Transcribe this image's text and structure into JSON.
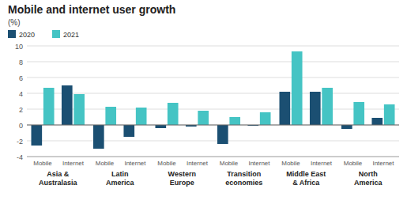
{
  "chart_data": {
    "type": "bar",
    "title": "Mobile and internet user growth",
    "subtitle": "(%)",
    "categories": [
      "Mobile",
      "Internet",
      "Mobile",
      "Internet",
      "Mobile",
      "Internet",
      "Mobile",
      "Internet",
      "Mobile",
      "Internet",
      "Mobile",
      "Internet"
    ],
    "groups": [
      "Asia &\nAustralasia",
      "Latin\nAmerica",
      "Western\nEurope",
      "Transition\neconomies",
      "Middle East\n& Africa",
      "North\nAmerica"
    ],
    "series": [
      {
        "name": "2020",
        "color": "#1b4f72",
        "values": [
          -2.6,
          5.0,
          -3.0,
          -1.5,
          -0.4,
          -0.2,
          -2.4,
          -0.1,
          4.2,
          4.2,
          -0.5,
          0.9
        ]
      },
      {
        "name": "2021",
        "color": "#45c4c4",
        "values": [
          4.7,
          3.9,
          2.3,
          2.2,
          2.8,
          1.8,
          1.0,
          1.6,
          9.3,
          4.7,
          2.9,
          2.6
        ]
      }
    ],
    "ylim": [
      -4,
      10
    ],
    "yticks": [
      -4,
      -2,
      0,
      2,
      4,
      6,
      8,
      10
    ],
    "grid": true,
    "legend": "upper left"
  }
}
